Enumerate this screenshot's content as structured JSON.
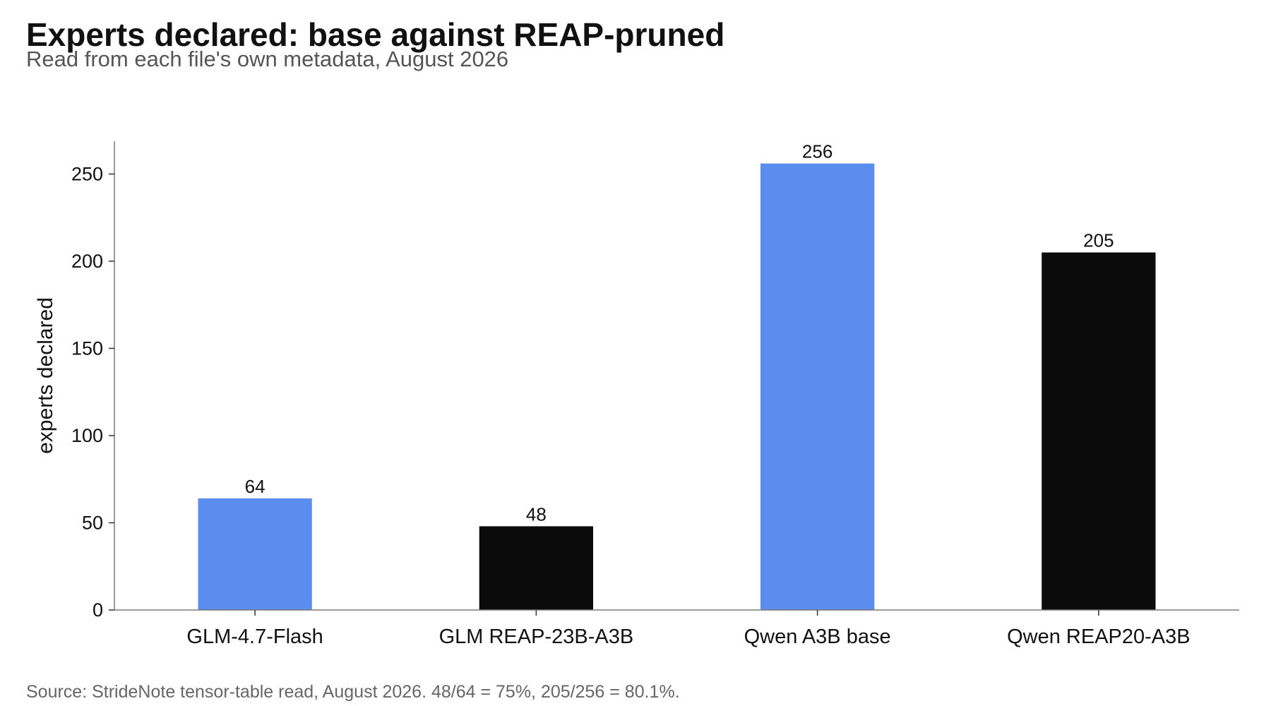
{
  "title": "Experts declared: base against REAP-pruned",
  "subtitle": "Read from each file's own metadata, August 2026",
  "source": "Source: StrideNote tensor-table read, August 2026. 48/64 = 75%, 205/256 = 80.1%.",
  "chart_data": {
    "type": "bar",
    "categories": [
      "GLM-4.7-Flash",
      "GLM REAP-23B-A3B",
      "Qwen A3B base",
      "Qwen REAP20-A3B"
    ],
    "values": [
      64,
      48,
      256,
      205
    ],
    "data_labels": [
      "64",
      "48",
      "256",
      "205"
    ],
    "bar_colors": [
      "#5b8def",
      "#0b0b0b",
      "#5b8def",
      "#0b0b0b"
    ],
    "xlabel": "",
    "ylabel": "experts declared",
    "ylim": [
      0,
      268.8
    ],
    "yticks": [
      0,
      50,
      100,
      150,
      200,
      250
    ],
    "grid": false,
    "legend": "none"
  }
}
